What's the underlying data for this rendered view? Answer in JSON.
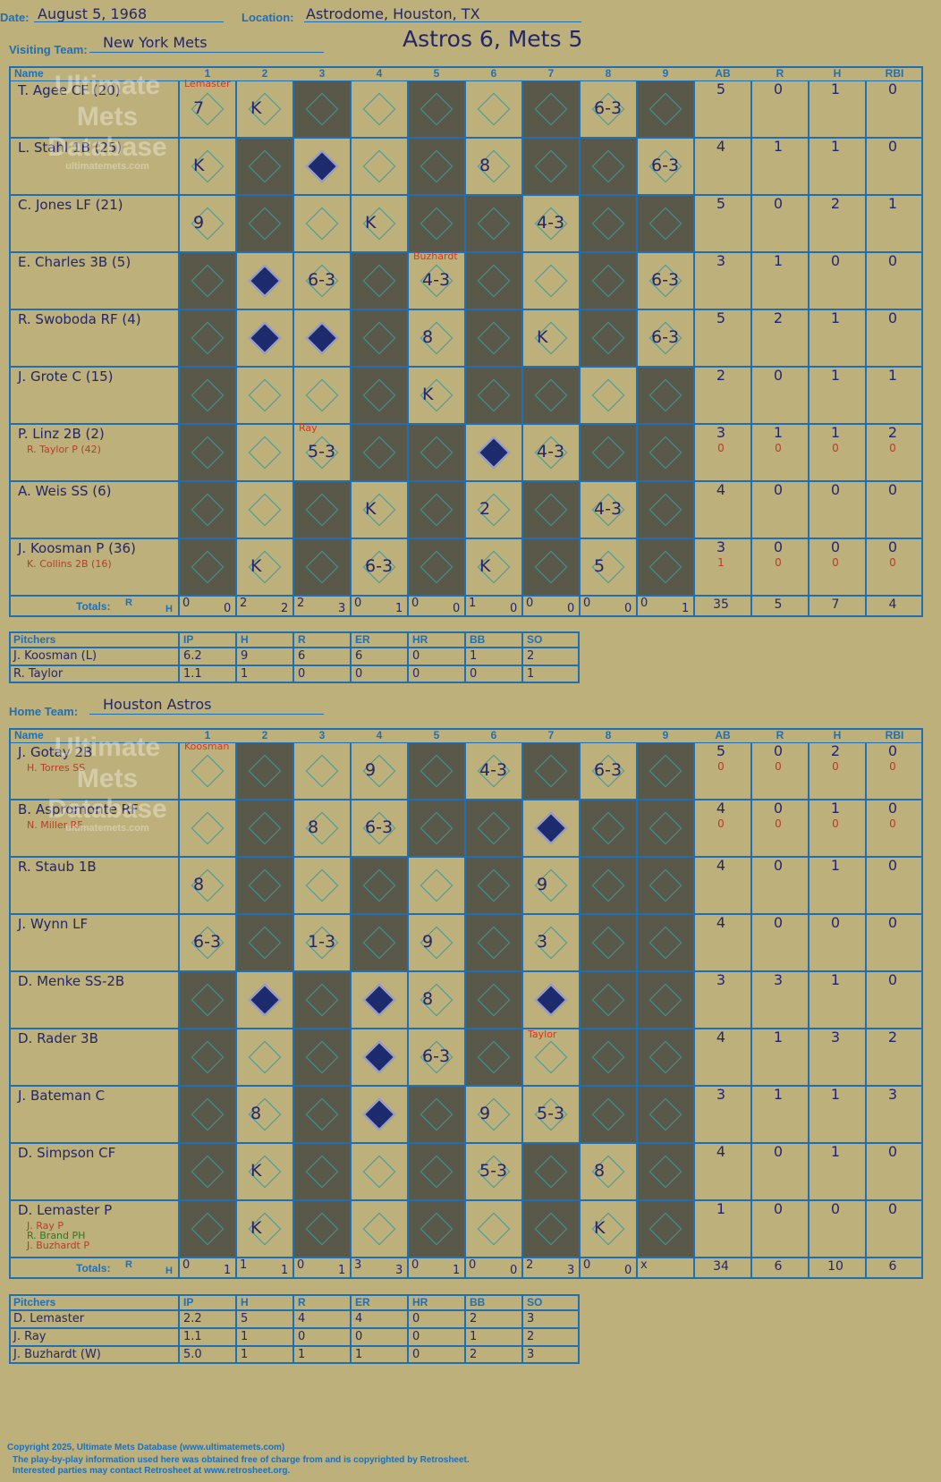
{
  "header": {
    "date_label": "Date:",
    "date": "August 5, 1968",
    "location_label": "Location:",
    "location": "Astrodome, Houston, TX",
    "visiting_label": "Visiting Team:",
    "visiting_team": "New York Mets",
    "home_label": "Home Team:",
    "home_team": "Houston Astros",
    "title": "Astros 6, Mets 5"
  },
  "columns": {
    "name": "Name",
    "innings": [
      "1",
      "2",
      "3",
      "4",
      "5",
      "6",
      "7",
      "8",
      "9"
    ],
    "stats": [
      "AB",
      "R",
      "H",
      "RBI"
    ]
  },
  "watermark": {
    "line1": "Ultimate",
    "line2": "Mets",
    "line3": "Database",
    "line4": "ultimatemets.com"
  },
  "visitors": {
    "batters": [
      {
        "name": "T. Agee CF (20)",
        "subs": [],
        "ab": "5",
        "r": "0",
        "h": "1",
        "rbi": "0"
      },
      {
        "name": "L. Stahl 1B (25)",
        "subs": [],
        "ab": "4",
        "r": "1",
        "h": "1",
        "rbi": "0"
      },
      {
        "name": "C. Jones LF (21)",
        "subs": [],
        "ab": "5",
        "r": "0",
        "h": "2",
        "rbi": "1"
      },
      {
        "name": "E. Charles 3B (5)",
        "subs": [],
        "ab": "3",
        "r": "1",
        "h": "0",
        "rbi": "0"
      },
      {
        "name": "R. Swoboda RF (4)",
        "subs": [],
        "ab": "5",
        "r": "2",
        "h": "1",
        "rbi": "0"
      },
      {
        "name": "J. Grote C (15)",
        "subs": [],
        "ab": "2",
        "r": "0",
        "h": "1",
        "rbi": "1"
      },
      {
        "name": "P. Linz 2B (2)",
        "subs": [
          "R. Taylor P (42)"
        ],
        "ab": "3",
        "r": "1",
        "h": "1",
        "rbi": "2",
        "ab2": "0",
        "r2": "0",
        "h2": "0",
        "rbi2": "0"
      },
      {
        "name": "A. Weis SS (6)",
        "subs": [],
        "ab": "4",
        "r": "0",
        "h": "0",
        "rbi": "0"
      },
      {
        "name": "J. Koosman P (36)",
        "subs": [
          "K. Collins 2B (16)"
        ],
        "ab": "3",
        "r": "0",
        "h": "0",
        "rbi": "0",
        "ab2": "1",
        "r2": "0",
        "h2": "0",
        "rbi2": "0"
      }
    ],
    "plays": [
      [
        "7",
        "K",
        "",
        "",
        "",
        "",
        "",
        "6-3",
        ""
      ],
      [
        "K",
        "",
        "",
        "",
        "",
        "8",
        "",
        "",
        "6-3"
      ],
      [
        "9",
        "",
        "",
        "K",
        "",
        "",
        "4-3",
        "",
        ""
      ],
      [
        "",
        "",
        "6-3",
        "",
        "4-3",
        "",
        "",
        "",
        "6-3"
      ],
      [
        "",
        "",
        "",
        "",
        "8",
        "",
        "K",
        "",
        "6-3"
      ],
      [
        "",
        "",
        "",
        "",
        "K",
        "",
        "",
        "",
        ""
      ],
      [
        "",
        "",
        "5-3",
        "",
        "",
        "",
        "4-3",
        "",
        ""
      ],
      [
        "",
        "",
        "",
        "K",
        "",
        "2",
        "",
        "4-3",
        ""
      ],
      [
        "",
        "K",
        "",
        "6-3",
        "",
        "K",
        "",
        "5",
        ""
      ]
    ],
    "notes": {
      "pitcher_change_1": "Lemaster",
      "pitcher_change_2": "Buzhardt",
      "pitcher_change_3": "Ray"
    },
    "totals_label": "Totals:",
    "rh": {
      "r": "R",
      "h": "H"
    },
    "inning_totals": [
      [
        "0",
        "0"
      ],
      [
        "2",
        "2"
      ],
      [
        "2",
        "3"
      ],
      [
        "0",
        "1"
      ],
      [
        "0",
        "0"
      ],
      [
        "1",
        "0"
      ],
      [
        "0",
        "0"
      ],
      [
        "0",
        "0"
      ],
      [
        "0",
        "1"
      ]
    ],
    "totals": {
      "ab": "35",
      "r": "5",
      "h": "7",
      "rbi": "4"
    },
    "pitchers_header": [
      "Pitchers",
      "IP",
      "H",
      "R",
      "ER",
      "HR",
      "BB",
      "SO"
    ],
    "pitchers": [
      [
        "J. Koosman (L)",
        "6.2",
        "9",
        "6",
        "6",
        "0",
        "1",
        "2"
      ],
      [
        "R. Taylor",
        "1.1",
        "1",
        "0",
        "0",
        "0",
        "0",
        "1"
      ]
    ]
  },
  "home": {
    "batters": [
      {
        "name": "J. Gotay 2B",
        "subs": [
          "H. Torres SS"
        ],
        "ab": "5",
        "r": "0",
        "h": "2",
        "rbi": "0",
        "ab2": "0",
        "r2": "0",
        "h2": "0",
        "rbi2": "0"
      },
      {
        "name": "B. Aspromonte RF",
        "subs": [
          "N. Miller RF"
        ],
        "ab": "4",
        "r": "0",
        "h": "1",
        "rbi": "0",
        "ab2": "0",
        "r2": "0",
        "h2": "0",
        "rbi2": "0"
      },
      {
        "name": "R. Staub 1B",
        "subs": [],
        "ab": "4",
        "r": "0",
        "h": "1",
        "rbi": "0"
      },
      {
        "name": "J. Wynn LF",
        "subs": [],
        "ab": "4",
        "r": "0",
        "h": "0",
        "rbi": "0"
      },
      {
        "name": "D. Menke SS-2B",
        "subs": [],
        "ab": "3",
        "r": "3",
        "h": "1",
        "rbi": "0"
      },
      {
        "name": "D. Rader 3B",
        "subs": [],
        "ab": "4",
        "r": "1",
        "h": "3",
        "rbi": "2"
      },
      {
        "name": "J. Bateman C",
        "subs": [],
        "ab": "3",
        "r": "1",
        "h": "1",
        "rbi": "3"
      },
      {
        "name": "D. Simpson CF",
        "subs": [],
        "ab": "4",
        "r": "0",
        "h": "1",
        "rbi": "0"
      },
      {
        "name": "D. Lemaster P",
        "subs": [
          "J. Ray P",
          "R. Brand PH",
          "J. Buzhardt P"
        ],
        "ab": "1",
        "r": "0",
        "h": "0",
        "rbi": "0"
      }
    ],
    "plays": [
      [
        "",
        "",
        "",
        "9",
        "",
        "4-3",
        "",
        "6-3",
        ""
      ],
      [
        "",
        "",
        "8",
        "6-3",
        "",
        "",
        "",
        "",
        ""
      ],
      [
        "8",
        "",
        "",
        "",
        "",
        "",
        "9",
        "",
        ""
      ],
      [
        "6-3",
        "",
        "1-3",
        "",
        "9",
        "",
        "3",
        "",
        ""
      ],
      [
        "",
        "",
        "",
        "",
        "8",
        "",
        "",
        "",
        ""
      ],
      [
        "",
        "",
        "",
        "",
        "6-3",
        "",
        "",
        "",
        ""
      ],
      [
        "",
        "8",
        "",
        "",
        "",
        "9",
        "5-3",
        "",
        ""
      ],
      [
        "",
        "K",
        "",
        "",
        "",
        "5-3",
        "",
        "8",
        ""
      ],
      [
        "",
        "K",
        "",
        "",
        "",
        "",
        "",
        "K",
        ""
      ]
    ],
    "notes": {
      "pitcher_change_1": "Koosman",
      "pitcher_change_2": "Taylor"
    },
    "totals_label": "Totals:",
    "rh": {
      "r": "R",
      "h": "H"
    },
    "inning_totals": [
      [
        "0",
        "1"
      ],
      [
        "1",
        "1"
      ],
      [
        "0",
        "1"
      ],
      [
        "3",
        "3"
      ],
      [
        "0",
        "1"
      ],
      [
        "0",
        "0"
      ],
      [
        "2",
        "3"
      ],
      [
        "0",
        "0"
      ],
      [
        "x",
        ""
      ]
    ],
    "totals": {
      "ab": "34",
      "r": "6",
      "h": "10",
      "rbi": "6"
    },
    "pitchers_header": [
      "Pitchers",
      "IP",
      "H",
      "R",
      "ER",
      "HR",
      "BB",
      "SO"
    ],
    "pitchers": [
      [
        "D. Lemaster",
        "2.2",
        "5",
        "4",
        "4",
        "0",
        "2",
        "3"
      ],
      [
        "J. Ray",
        "1.1",
        "1",
        "0",
        "0",
        "0",
        "1",
        "2"
      ],
      [
        "J. Buzhardt (W)",
        "5.0",
        "1",
        "1",
        "1",
        "0",
        "2",
        "3"
      ]
    ]
  },
  "footer": {
    "line1": "Copyright 2025, Ultimate Mets Database (www.ultimatemets.com)",
    "line2": "The play-by-play information used here was obtained free of charge from and is copyrighted by Retrosheet.",
    "line3": "Interested parties may contact Retrosheet at www.retrosheet.org."
  }
}
